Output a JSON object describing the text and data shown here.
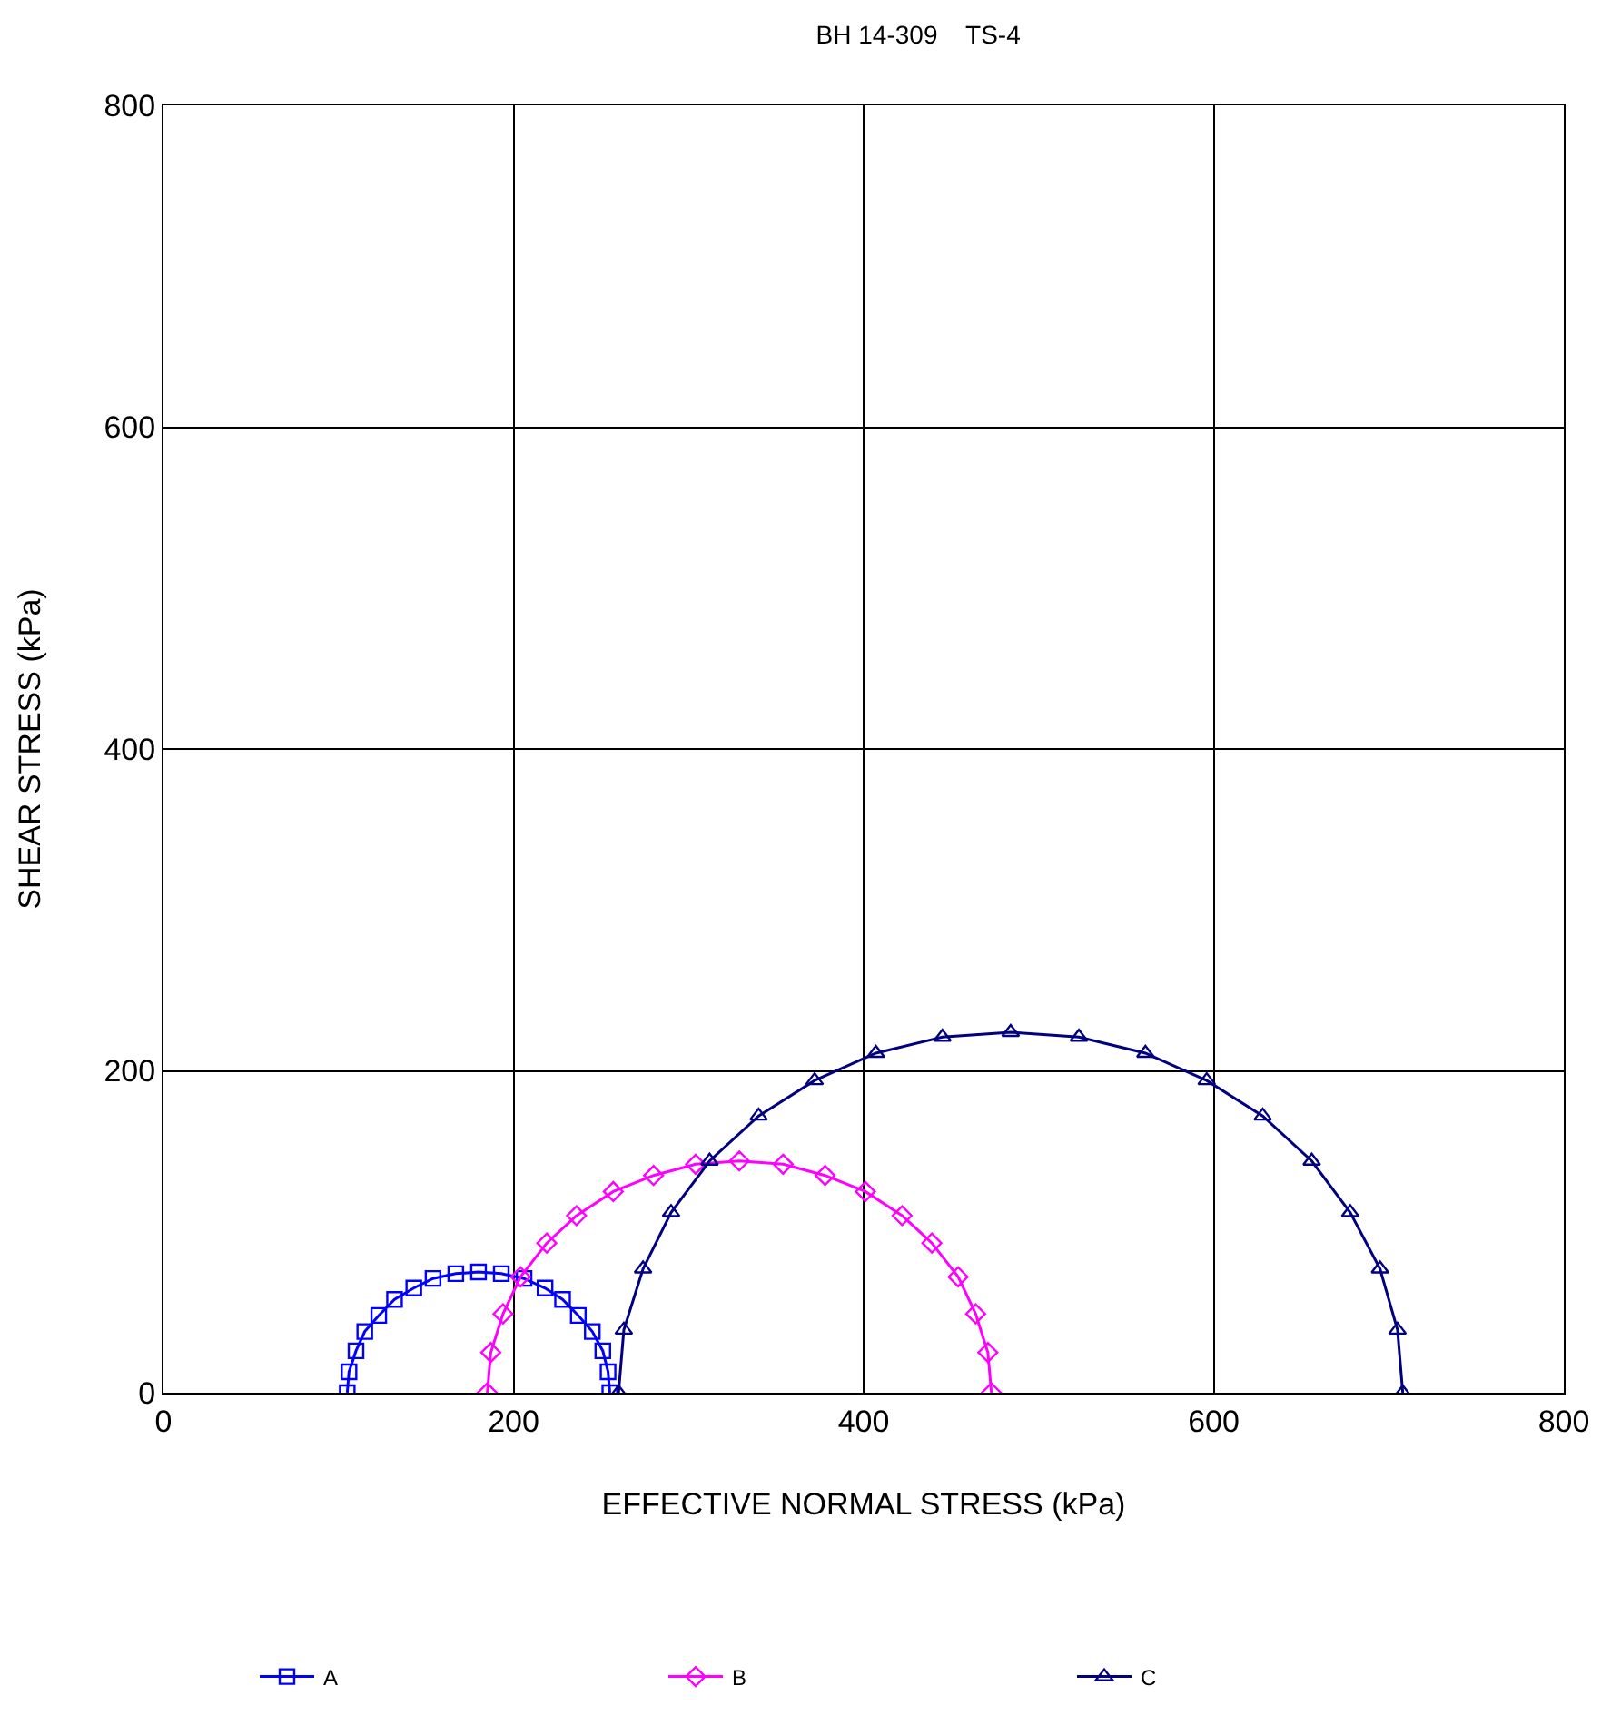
{
  "chart_data": {
    "type": "line",
    "title": "BH 14-309    TS-4",
    "xlabel": "EFFECTIVE NORMAL STRESS (kPa)",
    "ylabel": "SHEAR STRESS (kPa)",
    "xlim": [
      0,
      800
    ],
    "ylim": [
      0,
      800
    ],
    "xticks": [
      0,
      200,
      400,
      600,
      800
    ],
    "yticks": [
      0,
      200,
      400,
      600,
      800
    ],
    "grid": true,
    "legend": "bottom",
    "series": [
      {
        "name": "A",
        "color": "#0000ff",
        "marker": "square",
        "x": [
          105,
          106,
          110,
          115,
          123,
          132,
          143,
          154,
          167,
          180,
          193,
          206,
          218,
          228,
          237,
          245,
          251,
          254,
          255
        ],
        "values": [
          0,
          13,
          26,
          38,
          48,
          58,
          65,
          71,
          74,
          75,
          74,
          71,
          65,
          58,
          48,
          38,
          26,
          13,
          0
        ]
      },
      {
        "name": "B",
        "color": "#ff00ff",
        "marker": "diamond",
        "x": [
          185,
          187,
          194,
          204,
          219,
          236,
          257,
          280,
          304,
          329,
          354,
          378,
          401,
          422,
          439,
          454,
          464,
          471,
          473
        ],
        "values": [
          0,
          25,
          49,
          72,
          93,
          110,
          125,
          135,
          142,
          144,
          142,
          135,
          125,
          110,
          93,
          72,
          49,
          25,
          0
        ]
      },
      {
        "name": "C",
        "color": "#000080",
        "marker": "triangle",
        "x": [
          260,
          263,
          274,
          290,
          312,
          340,
          372,
          407,
          445,
          484,
          523,
          561,
          596,
          628,
          656,
          678,
          695,
          705,
          708
        ],
        "values": [
          0,
          39,
          77,
          112,
          144,
          172,
          194,
          211,
          221,
          224,
          221,
          211,
          194,
          172,
          144,
          112,
          77,
          39,
          0
        ]
      }
    ]
  }
}
